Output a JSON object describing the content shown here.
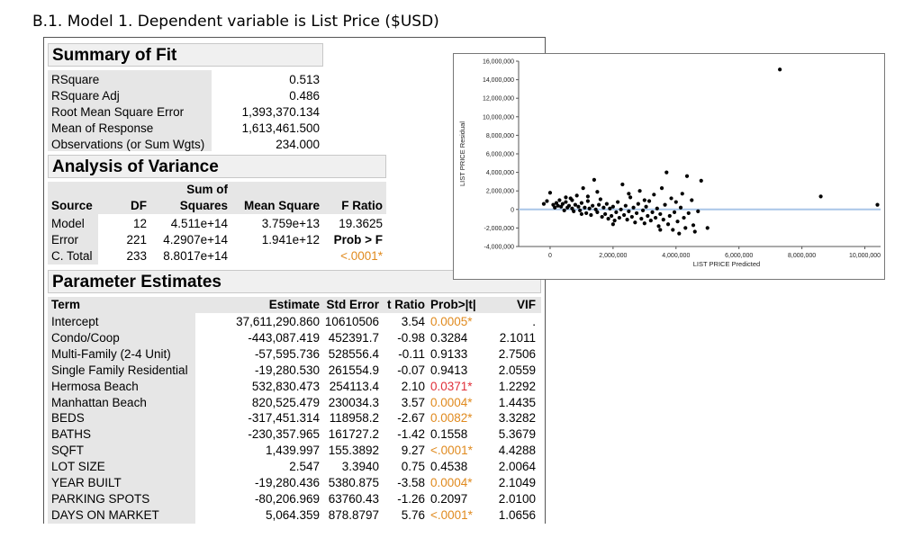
{
  "heading": {
    "prefix": "B.1. Model 1",
    "middle": ". Dependent variable is ",
    "dep_var": "List Price ($USD)"
  },
  "summary_of_fit": {
    "title": "Summary of Fit",
    "rows": [
      {
        "label": "RSquare",
        "value": "0.513"
      },
      {
        "label": "RSquare Adj",
        "value": "0.486"
      },
      {
        "label": "Root Mean Square Error",
        "value": "1,393,370.134"
      },
      {
        "label": "Mean of Response",
        "value": "1,613,461.500"
      },
      {
        "label": "Observations (or Sum Wgts)",
        "value": "234.000"
      }
    ]
  },
  "anova": {
    "title": "Analysis of Variance",
    "headers": {
      "source": "Source",
      "df": "DF",
      "ss_top": "Sum of",
      "ss_bottom": "Squares",
      "ms": "Mean Square",
      "f": "F Ratio"
    },
    "rows": [
      {
        "source": "Model",
        "df": "12",
        "ss": "4.511e+14",
        "ms": "3.759e+13",
        "f": "19.3625"
      },
      {
        "source": "Error",
        "df": "221",
        "ss": "4.2907e+14",
        "ms": "1.941e+12",
        "f": "Prob > F"
      },
      {
        "source": "C. Total",
        "df": "233",
        "ss": "8.8017e+14",
        "ms": "",
        "f": "<.0001*"
      }
    ]
  },
  "parameter_estimates": {
    "title": "Parameter Estimates",
    "headers": {
      "term": "Term",
      "estimate": "Estimate",
      "std_error": "Std Error",
      "t_ratio": "t Ratio",
      "prob": "Prob>|t|",
      "vif": "VIF"
    },
    "rows": [
      {
        "term": "Intercept",
        "estimate": "37,611,290.860",
        "std_error": "10610506",
        "t_ratio": "3.54",
        "prob": "0.0005*",
        "vif": "."
      },
      {
        "term": "Condo/Coop",
        "estimate": "-443,087.419",
        "std_error": "452391.7",
        "t_ratio": "-0.98",
        "prob": "0.3284",
        "vif": "2.1011"
      },
      {
        "term": "Multi-Family (2-4 Unit)",
        "estimate": "-57,595.736",
        "std_error": "528556.4",
        "t_ratio": "-0.11",
        "prob": "0.9133",
        "vif": "2.7506"
      },
      {
        "term": "Single Family Residential",
        "estimate": "-19,280.530",
        "std_error": "261554.9",
        "t_ratio": "-0.07",
        "prob": "0.9413",
        "vif": "2.0559"
      },
      {
        "term": "Hermosa Beach",
        "estimate": "532,830.473",
        "std_error": "254113.4",
        "t_ratio": "2.10",
        "prob": "0.0371*",
        "vif": "1.2292"
      },
      {
        "term": "Manhattan Beach",
        "estimate": "820,525.479",
        "std_error": "230034.3",
        "t_ratio": "3.57",
        "prob": "0.0004*",
        "vif": "1.4435"
      },
      {
        "term": "BEDS",
        "estimate": "-317,451.314",
        "std_error": "118958.2",
        "t_ratio": "-2.67",
        "prob": "0.0082*",
        "vif": "3.3282"
      },
      {
        "term": "BATHS",
        "estimate": "-230,357.965",
        "std_error": "161727.2",
        "t_ratio": "-1.42",
        "prob": "0.1558",
        "vif": "5.3679"
      },
      {
        "term": "SQFT",
        "estimate": "1,439.997",
        "std_error": "155.3892",
        "t_ratio": "9.27",
        "prob": "<.0001*",
        "vif": "4.4288"
      },
      {
        "term": "LOT SIZE",
        "estimate": "2.547",
        "std_error": "3.3940",
        "t_ratio": "0.75",
        "prob": "0.4538",
        "vif": "2.0064"
      },
      {
        "term": "YEAR BUILT",
        "estimate": "-19,280.436",
        "std_error": "5380.875",
        "t_ratio": "-3.58",
        "prob": "0.0004*",
        "vif": "2.1049"
      },
      {
        "term": "PARKING SPOTS",
        "estimate": "-80,206.969",
        "std_error": "63760.43",
        "t_ratio": "-1.26",
        "prob": "0.2097",
        "vif": "2.0100"
      },
      {
        "term": "DAYS ON MARKET",
        "estimate": "5,064.359",
        "std_error": "878.8797",
        "t_ratio": "5.76",
        "prob": "<.0001*",
        "vif": "1.0656"
      }
    ]
  },
  "colors": {
    "significant": "#e08a1e",
    "highly_significant_red": "#e0303a",
    "zero_line": "#a9c6e8",
    "section_bg": "#f0f0f0",
    "label_bg": "#e6e6e6"
  },
  "chart_data": {
    "type": "scatter",
    "xlabel": "LIST PRICE Predicted",
    "ylabel": "LIST PRICE Residual",
    "xlim": [
      -1000000,
      10500000
    ],
    "ylim": [
      -4000000,
      16000000
    ],
    "x_ticks": [
      0,
      2000000,
      4000000,
      6000000,
      8000000,
      10000000
    ],
    "x_tick_labels": [
      "0",
      "2,000,000",
      "4,000,000",
      "6,000,000",
      "8,000,000",
      "10,000,000"
    ],
    "y_ticks": [
      -4000000,
      -2000000,
      0,
      2000000,
      4000000,
      6000000,
      8000000,
      10000000,
      12000000,
      14000000,
      16000000
    ],
    "y_tick_labels": [
      "-4,000,000",
      "-2,000,000",
      "0",
      "2,000,000",
      "4,000,000",
      "6,000,000",
      "8,000,000",
      "10,000,000",
      "12,000,000",
      "14,000,000",
      "16,000,000"
    ],
    "reference_line_y": 0,
    "points": [
      [
        7300000,
        15100000
      ],
      [
        8600000,
        1400000
      ],
      [
        10400000,
        500000
      ],
      [
        -200000,
        600000
      ],
      [
        -100000,
        900000
      ],
      [
        0,
        1800000
      ],
      [
        100000,
        500000
      ],
      [
        150000,
        200000
      ],
      [
        200000,
        700000
      ],
      [
        250000,
        400000
      ],
      [
        300000,
        1000000
      ],
      [
        350000,
        300000
      ],
      [
        400000,
        600000
      ],
      [
        450000,
        -100000
      ],
      [
        500000,
        800000
      ],
      [
        550000,
        200000
      ],
      [
        600000,
        400000
      ],
      [
        650000,
        1200000
      ],
      [
        700000,
        100000
      ],
      [
        750000,
        -200000
      ],
      [
        800000,
        500000
      ],
      [
        850000,
        1500000
      ],
      [
        900000,
        300000
      ],
      [
        950000,
        -100000
      ],
      [
        1000000,
        700000
      ],
      [
        1050000,
        2300000
      ],
      [
        1100000,
        200000
      ],
      [
        1150000,
        -400000
      ],
      [
        1200000,
        900000
      ],
      [
        1250000,
        100000
      ],
      [
        1300000,
        -600000
      ],
      [
        1350000,
        400000
      ],
      [
        1400000,
        3200000
      ],
      [
        1450000,
        0
      ],
      [
        1500000,
        -300000
      ],
      [
        1550000,
        500000
      ],
      [
        1600000,
        1100000
      ],
      [
        1650000,
        -800000
      ],
      [
        1700000,
        200000
      ],
      [
        1750000,
        -500000
      ],
      [
        1800000,
        600000
      ],
      [
        1850000,
        -1000000
      ],
      [
        1900000,
        100000
      ],
      [
        1950000,
        -700000
      ],
      [
        2000000,
        300000
      ],
      [
        2050000,
        -1200000
      ],
      [
        2100000,
        -300000
      ],
      [
        2150000,
        800000
      ],
      [
        2200000,
        -900000
      ],
      [
        2250000,
        0
      ],
      [
        2300000,
        2700000
      ],
      [
        2350000,
        -600000
      ],
      [
        2400000,
        400000
      ],
      [
        2450000,
        -1100000
      ],
      [
        2500000,
        -200000
      ],
      [
        2550000,
        1300000
      ],
      [
        2600000,
        -800000
      ],
      [
        2650000,
        200000
      ],
      [
        2700000,
        -1400000
      ],
      [
        2750000,
        -400000
      ],
      [
        2800000,
        600000
      ],
      [
        2850000,
        2000000
      ],
      [
        2900000,
        -1000000
      ],
      [
        2950000,
        -100000
      ],
      [
        3000000,
        -1500000
      ],
      [
        3050000,
        300000
      ],
      [
        3100000,
        -700000
      ],
      [
        3150000,
        900000
      ],
      [
        3200000,
        -1200000
      ],
      [
        3250000,
        -300000
      ],
      [
        3300000,
        1600000
      ],
      [
        3350000,
        -900000
      ],
      [
        3400000,
        100000
      ],
      [
        3450000,
        -1800000
      ],
      [
        3500000,
        -500000
      ],
      [
        3550000,
        2300000
      ],
      [
        3600000,
        -1100000
      ],
      [
        3650000,
        500000
      ],
      [
        3700000,
        4000000
      ],
      [
        3750000,
        -1600000
      ],
      [
        3800000,
        -700000
      ],
      [
        3850000,
        1200000
      ],
      [
        3900000,
        -2200000
      ],
      [
        3950000,
        -300000
      ],
      [
        4000000,
        800000
      ],
      [
        4050000,
        -1300000
      ],
      [
        4100000,
        -2600000
      ],
      [
        4150000,
        200000
      ],
      [
        4200000,
        1700000
      ],
      [
        4250000,
        -900000
      ],
      [
        4300000,
        -2000000
      ],
      [
        4350000,
        3600000
      ],
      [
        4400000,
        -400000
      ],
      [
        4500000,
        1000000
      ],
      [
        4550000,
        -1700000
      ],
      [
        4600000,
        -2400000
      ],
      [
        4700000,
        -200000
      ],
      [
        4800000,
        3100000
      ],
      [
        5000000,
        -2000000
      ],
      [
        500000,
        1300000
      ],
      [
        1000000,
        -500000
      ],
      [
        1500000,
        1900000
      ],
      [
        2000000,
        -1600000
      ],
      [
        2500000,
        1700000
      ],
      [
        3000000,
        1000000
      ],
      [
        3500000,
        -2200000
      ],
      [
        700000,
        1000000
      ],
      [
        1200000,
        1400000
      ]
    ]
  }
}
